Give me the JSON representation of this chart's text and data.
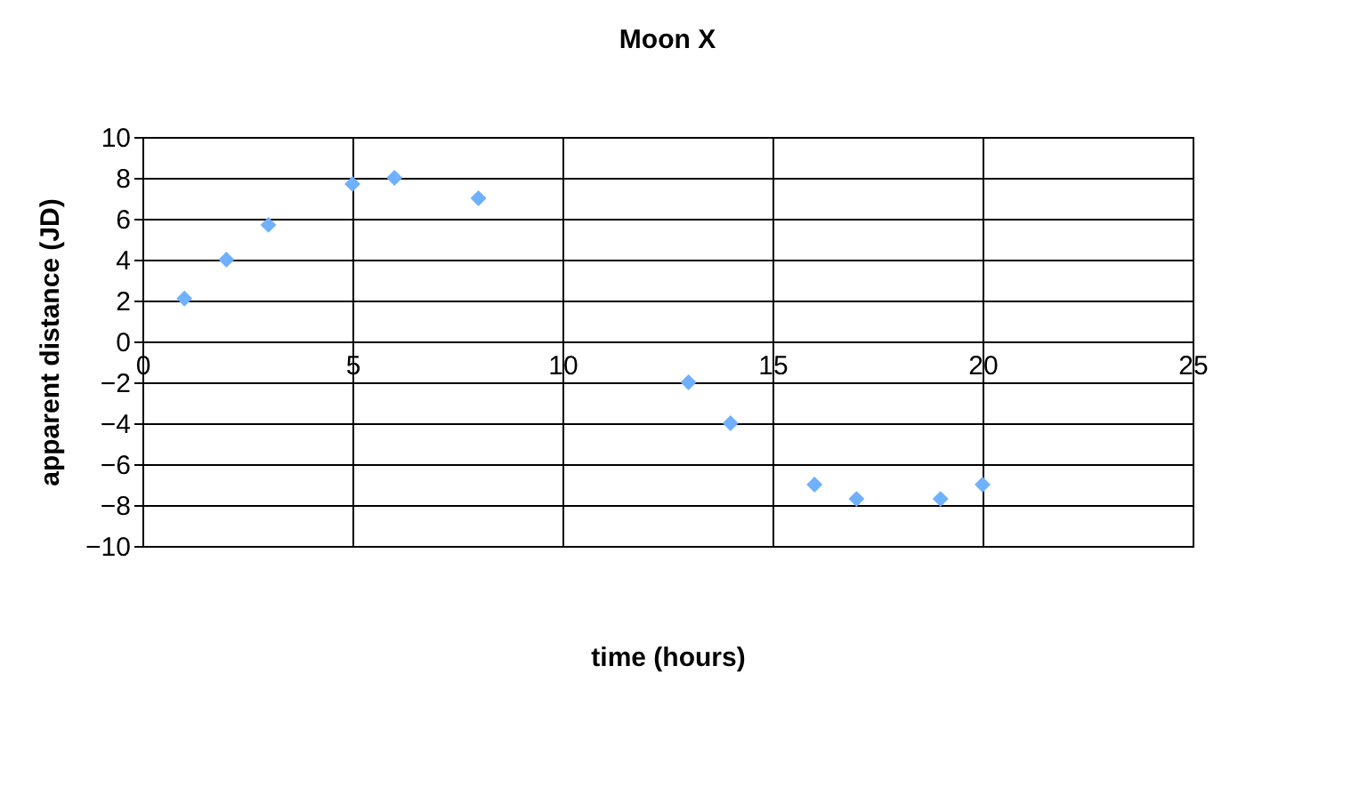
{
  "chart_data": {
    "type": "scatter",
    "title": "Moon X",
    "xlabel": "time (hours)",
    "ylabel": "apparent distance (JD)",
    "x": [
      1,
      2,
      3,
      5,
      6,
      8,
      13,
      14,
      16,
      17,
      19,
      20
    ],
    "series": [
      {
        "color": "#6fb0ff",
        "values": [
          2.1,
          4,
          5.7,
          7.7,
          8,
          7,
          -2,
          -4,
          -7,
          -7.7,
          -7.7,
          -7
        ]
      }
    ],
    "xlim": [
      0,
      25
    ],
    "xticks": [
      0,
      5,
      10,
      15,
      20,
      25
    ],
    "ylim": [
      -10,
      10
    ],
    "yticks": [
      -10,
      -8,
      -6,
      -4,
      -2,
      0,
      2,
      4,
      6,
      8,
      10
    ],
    "grid": true,
    "marker": "diamond"
  }
}
